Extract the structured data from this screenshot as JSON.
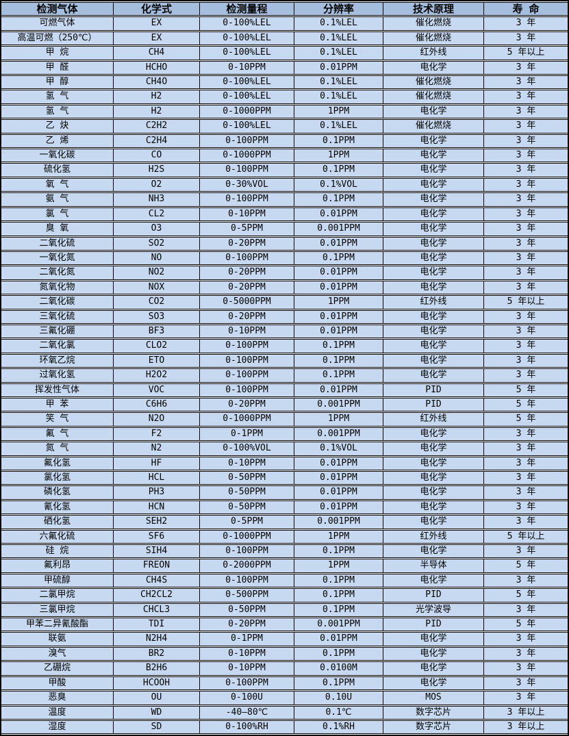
{
  "colors": {
    "header_bg": "#a6bedd",
    "row_bg": "#c6d9f0",
    "grid_border": "#000000",
    "row_gap": "#ffffff",
    "text": "#000000"
  },
  "table": {
    "columns": [
      "检测气体",
      "化学式",
      "检测量程",
      "分辨率",
      "技术原理",
      "寿 命"
    ],
    "rows": [
      [
        "可燃气体",
        "EX",
        "0-100%LEL",
        "0.1%LEL",
        "催化燃烧",
        "3 年"
      ],
      [
        "高温可燃（250℃）",
        "EX",
        "0-100%LEL",
        "0.1%LEL",
        "催化燃烧",
        "3 年"
      ],
      [
        "甲 烷",
        "CH4",
        "0-100%LEL",
        "0.1%LEL",
        "红外线",
        "5 年以上"
      ],
      [
        "甲 醛",
        "HCHO",
        "0-10PPM",
        "0.01PPM",
        "电化学",
        "3 年"
      ],
      [
        "甲 醇",
        "CH4O",
        "0-100%LEL",
        "0.1%LEL",
        "催化燃烧",
        "3 年"
      ],
      [
        "氢 气",
        "H2",
        "0-100%LEL",
        "0.1%LEL",
        "催化燃烧",
        "3 年"
      ],
      [
        "氢 气",
        "H2",
        "0-1000PPM",
        "1PPM",
        "电化学",
        "3 年"
      ],
      [
        "乙 炔",
        "C2H2",
        "0-100%LEL",
        "0.1%LEL",
        "催化燃烧",
        "3 年"
      ],
      [
        "乙 烯",
        "C2H4",
        "0-100PPM",
        "0.1PPM",
        "电化学",
        "3 年"
      ],
      [
        "一氧化碳",
        "CO",
        "0-1000PPM",
        "1PPM",
        "电化学",
        "3 年"
      ],
      [
        "硫化氢",
        "H2S",
        "0-100PPM",
        "0.1PPM",
        "电化学",
        "3 年"
      ],
      [
        "氧 气",
        "O2",
        "0-30%VOL",
        "0.1%VOL",
        "电化学",
        "3 年"
      ],
      [
        "氨 气",
        "NH3",
        "0-100PPM",
        "0.1PPM",
        "电化学",
        "3 年"
      ],
      [
        "氯 气",
        "CL2",
        "0-10PPM",
        "0.01PPM",
        "电化学",
        "3 年"
      ],
      [
        "臭 氧",
        "O3",
        "0-5PPM",
        "0.001PPM",
        "电化学",
        "3 年"
      ],
      [
        "二氧化硫",
        "SO2",
        "0-20PPM",
        "0.01PPM",
        "电化学",
        "3 年"
      ],
      [
        "一氧化氮",
        "NO",
        "0-100PPM",
        "0.1PPM",
        "电化学",
        "3 年"
      ],
      [
        "二氧化氮",
        "NO2",
        "0-20PPM",
        "0.01PPM",
        "电化学",
        "3 年"
      ],
      [
        "氮氧化物",
        "NOX",
        "0-20PPM",
        "0.01PPM",
        "电化学",
        "3 年"
      ],
      [
        "二氧化碳",
        "CO2",
        "0-5000PPM",
        "1PPM",
        "红外线",
        "5 年以上"
      ],
      [
        "三氧化硫",
        "SO3",
        "0-20PPM",
        "0.01PPM",
        "电化学",
        "3 年"
      ],
      [
        "三氟化硼",
        "BF3",
        "0-10PPM",
        "0.01PPM",
        "电化学",
        "3 年"
      ],
      [
        "二氧化氯",
        "CLO2",
        "0-100PPM",
        "0.1PPM",
        "电化学",
        "3 年"
      ],
      [
        "环氧乙烷",
        "ETO",
        "0-100PPM",
        "0.1PPM",
        "电化学",
        "3 年"
      ],
      [
        "过氧化氢",
        "H2O2",
        "0-100PPM",
        "0.1PPM",
        "电化学",
        "3 年"
      ],
      [
        "挥发性气体",
        "VOC",
        "0-100PPM",
        "0.01PPM",
        "PID",
        "5 年"
      ],
      [
        "甲 苯",
        "C6H6",
        "0-20PPM",
        "0.001PPM",
        "PID",
        "5 年"
      ],
      [
        "笑 气",
        "N2O",
        "0-1000PPM",
        "1PPM",
        "红外线",
        "5 年"
      ],
      [
        "氟 气",
        "F2",
        "0-1PPM",
        "0.001PPM",
        "电化学",
        "3 年"
      ],
      [
        "氮 气",
        "N2",
        "0-100%VOL",
        "0.1%VOL",
        "电化学",
        "3 年"
      ],
      [
        "氟化氢",
        "HF",
        "0-10PPM",
        "0.01PPM",
        "电化学",
        "3 年"
      ],
      [
        "氯化氢",
        "HCL",
        "0-50PPM",
        "0.01PPM",
        "电化学",
        "3 年"
      ],
      [
        "磷化氢",
        "PH3",
        "0-50PPM",
        "0.01PPM",
        "电化学",
        "3 年"
      ],
      [
        "氰化氢",
        "HCN",
        "0-50PPM",
        "0.01PPM",
        "电化学",
        "3 年"
      ],
      [
        "硒化氢",
        "SEH2",
        "0-5PPM",
        "0.001PPM",
        "电化学",
        "3 年"
      ],
      [
        "六氟化硫",
        "SF6",
        "0-1000PPM",
        "1PPM",
        "红外线",
        "5 年以上"
      ],
      [
        "硅 烷",
        "SIH4",
        "0-100PPM",
        "0.1PPM",
        "电化学",
        "3 年"
      ],
      [
        "氟利昂",
        "FREON",
        "0-2000PPM",
        "1PPM",
        "半导体",
        "5 年"
      ],
      [
        "甲硫醇",
        "CH4S",
        "0-100PPM",
        "0.1PPM",
        "电化学",
        "3 年"
      ],
      [
        "二氯甲烷",
        "CH2CL2",
        "0-500PPM",
        "0.1PPM",
        "PID",
        "5 年"
      ],
      [
        "三氯甲烷",
        "CHCL3",
        "0-50PPM",
        "0.1PPM",
        "光学波导",
        "3 年"
      ],
      [
        "甲苯二异氰酸酯",
        "TDI",
        "0-20PPM",
        "0.001PPM",
        "PID",
        "5 年"
      ],
      [
        "联氨",
        "N2H4",
        "0-1PPM",
        "0.01PPM",
        "电化学",
        "3 年"
      ],
      [
        "溴气",
        "BR2",
        "0-10PPM",
        "0.1PPM",
        "电化学",
        "3 年"
      ],
      [
        "乙硼烷",
        "B2H6",
        "0-10PPM",
        "0.0100M",
        "电化学",
        "3 年"
      ],
      [
        "甲酸",
        "HCOOH",
        "0-100PPM",
        "0.1PPM",
        "电化学",
        "3 年"
      ],
      [
        "恶臭",
        "OU",
        "0-100U",
        "0.10U",
        "MOS",
        "3 年"
      ],
      [
        "温度",
        "WD",
        "-40—80℃",
        "0.1℃",
        "数字芯片",
        "3 年以上"
      ],
      [
        "湿度",
        "SD",
        "0-100%RH",
        "0.1%RH",
        "数字芯片",
        "3 年以上"
      ]
    ]
  }
}
